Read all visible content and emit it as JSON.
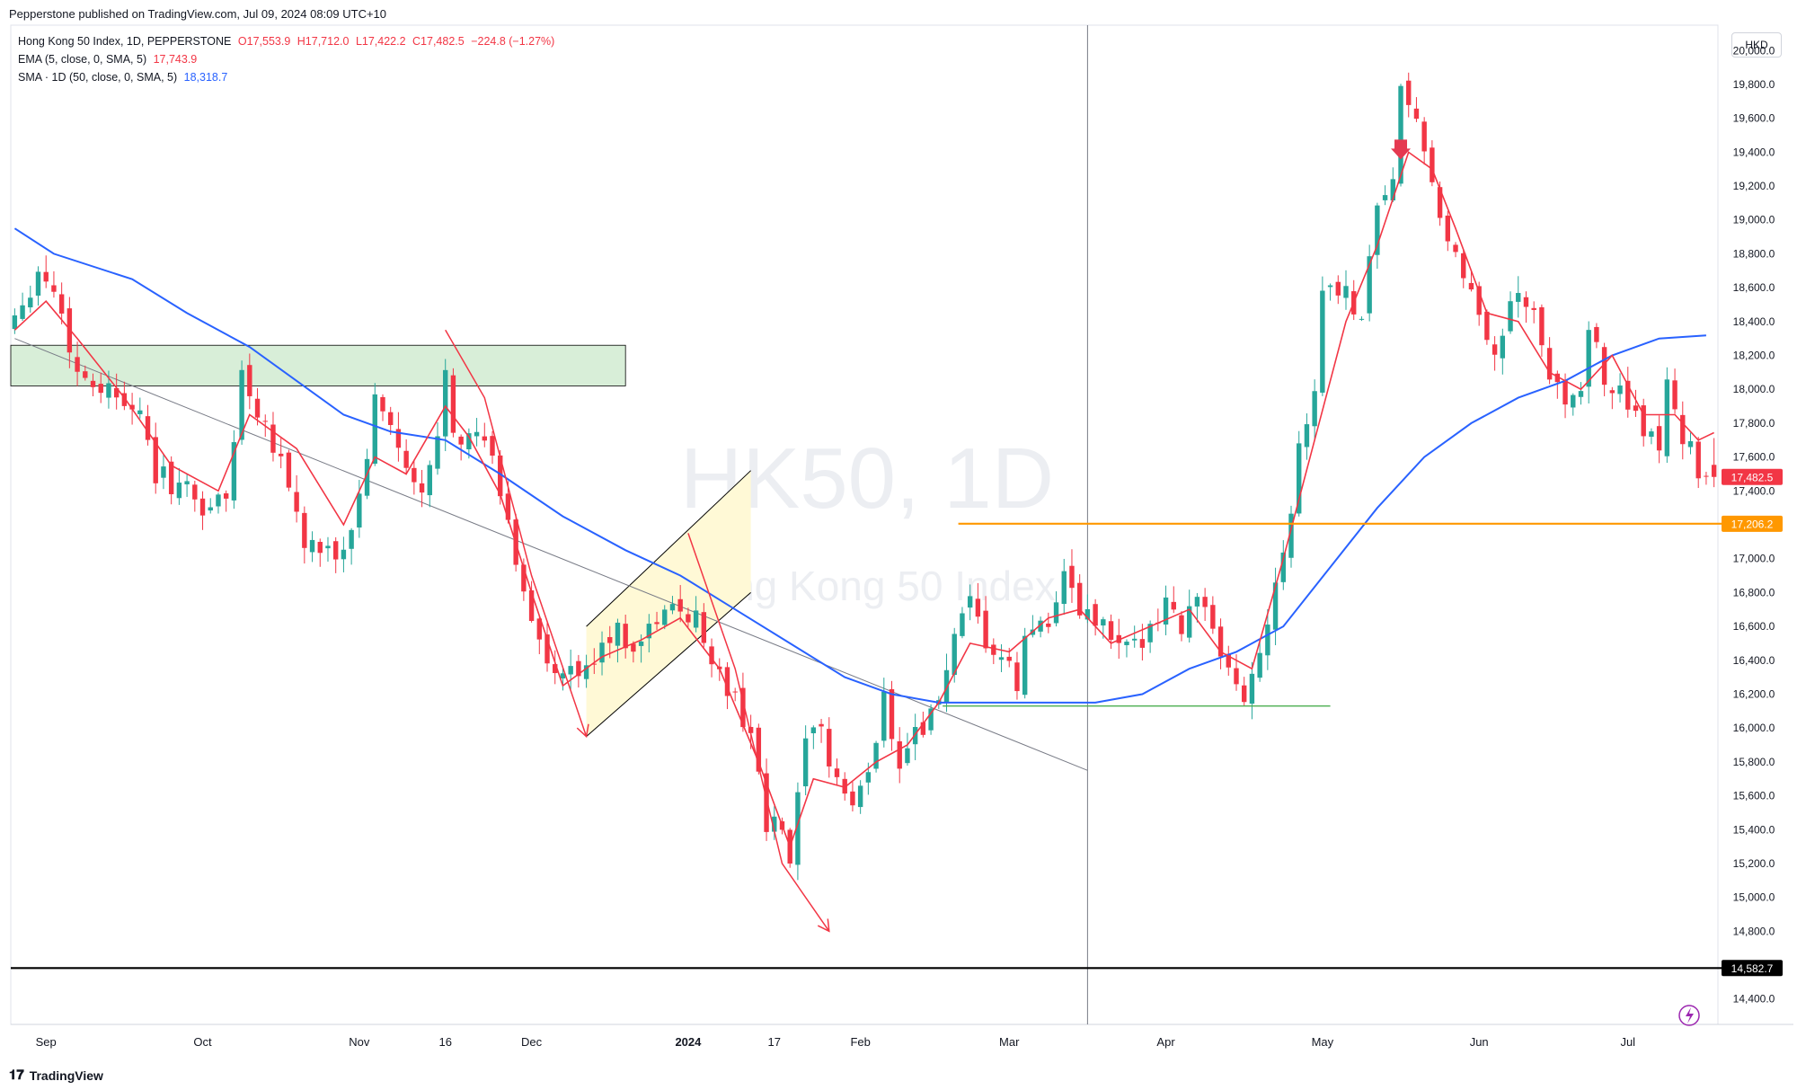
{
  "publisher": "Pepperstone published on TradingView.com, Jul 09, 2024 08:09 UTC+10",
  "legend": {
    "symbol_line": "Hong Kong 50 Index, 1D, PEPPERSTONE",
    "ohlc": {
      "o": "O17,553.9",
      "h": "H17,712.0",
      "l": "L17,422.2",
      "c": "C17,482.5",
      "chg": "−224.8 (−1.27%)"
    },
    "ema_label": "EMA (5, close, 0, SMA, 5)",
    "ema_value": "17,743.9",
    "sma_label": "SMA · 1D (50, close, 0, SMA, 5)",
    "sma_value": "18,318.7"
  },
  "currency": "HKD",
  "watermark": {
    "symbol": "HK50, 1D",
    "name": "Hong Kong 50 Index"
  },
  "footer": {
    "brand": "TradingView"
  },
  "colors": {
    "up": "#26a69a",
    "down": "#f23645",
    "ema": "#f23645",
    "sma": "#2962ff",
    "resistance": "#ff9800",
    "support_line": "#4caf50",
    "zone_fill": "#d8eed8",
    "channel_fill": "#fff9d6",
    "floor_line": "#000000"
  },
  "chart_data": {
    "type": "candlestick",
    "y_axis": {
      "min": 14250,
      "max": 20150,
      "ticks": [
        14400,
        14600,
        14800,
        15000,
        15200,
        15400,
        15600,
        15800,
        16000,
        16200,
        16400,
        16600,
        16800,
        17000,
        17200,
        17400,
        17600,
        17800,
        18000,
        18200,
        18400,
        18600,
        18800,
        19000,
        19200,
        19400,
        19600,
        19800,
        20000
      ],
      "tick_labels": [
        "14,400.0",
        "14,600.0",
        "14,800.0",
        "15,000.0",
        "15,200.0",
        "15,400.0",
        "15,600.0",
        "15,800.0",
        "16,000.0",
        "16,200.0",
        "16,400.0",
        "16,600.0",
        "16,800.0",
        "17,000.0",
        "17,200.0",
        "17,400.0",
        "17,600.0",
        "17,800.0",
        "18,000.0",
        "18,200.0",
        "18,400.0",
        "18,600.0",
        "18,800.0",
        "19,000.0",
        "19,200.0",
        "19,400.0",
        "19,600.0",
        "19,800.0",
        "20,000.0"
      ]
    },
    "x_axis": {
      "bar_count": 218,
      "labels": [
        {
          "text": "Sep",
          "bar": 4,
          "bold": false
        },
        {
          "text": "Oct",
          "bar": 24,
          "bold": false
        },
        {
          "text": "Nov",
          "bar": 44,
          "bold": false
        },
        {
          "text": "16",
          "bar": 55,
          "bold": false
        },
        {
          "text": "Dec",
          "bar": 66,
          "bold": false
        },
        {
          "text": "2024",
          "bar": 86,
          "bold": true
        },
        {
          "text": "17",
          "bar": 97,
          "bold": false
        },
        {
          "text": "Feb",
          "bar": 108,
          "bold": false
        },
        {
          "text": "Mar",
          "bar": 127,
          "bold": false
        },
        {
          "text": "Apr",
          "bar": 147,
          "bold": false
        },
        {
          "text": "May",
          "bar": 167,
          "bold": false
        },
        {
          "text": "Jun",
          "bar": 187,
          "bold": false
        },
        {
          "text": "Jul",
          "bar": 206,
          "bold": false
        }
      ]
    },
    "price_labels": [
      {
        "value": 17482.5,
        "text": "17,482.5",
        "color": "#f23645"
      },
      {
        "value": 17206.2,
        "text": "17,206.2",
        "color": "#ff9800"
      },
      {
        "value": 14582.7,
        "text": "14,582.7",
        "color": "#000000"
      }
    ],
    "close_path": [
      [
        0,
        18450
      ],
      [
        3,
        18700
      ],
      [
        5,
        18600
      ],
      [
        8,
        18100
      ],
      [
        12,
        18000
      ],
      [
        15,
        17950
      ],
      [
        18,
        17500
      ],
      [
        22,
        17400
      ],
      [
        24,
        17300
      ],
      [
        27,
        17350
      ],
      [
        29,
        18100
      ],
      [
        31,
        17900
      ],
      [
        34,
        17600
      ],
      [
        37,
        17100
      ],
      [
        40,
        17000
      ],
      [
        42,
        17050
      ],
      [
        44,
        17350
      ],
      [
        46,
        17900
      ],
      [
        48,
        17800
      ],
      [
        50,
        17500
      ],
      [
        52,
        17350
      ],
      [
        54,
        17700
      ],
      [
        55,
        18150
      ],
      [
        56,
        17800
      ],
      [
        58,
        17700
      ],
      [
        60,
        17700
      ],
      [
        62,
        17400
      ],
      [
        64,
        17000
      ],
      [
        67,
        16500
      ],
      [
        69,
        16250
      ],
      [
        71,
        16350
      ],
      [
        73,
        16300
      ],
      [
        75,
        16550
      ],
      [
        77,
        16550
      ],
      [
        80,
        16500
      ],
      [
        82,
        16650
      ],
      [
        85,
        16700
      ],
      [
        86,
        16700
      ],
      [
        88,
        16550
      ],
      [
        90,
        16300
      ],
      [
        92,
        16150
      ],
      [
        94,
        16000
      ],
      [
        96,
        15400
      ],
      [
        98,
        15400
      ],
      [
        99,
        15200
      ],
      [
        100,
        15550
      ],
      [
        101,
        15900
      ],
      [
        103,
        15950
      ],
      [
        105,
        15700
      ],
      [
        107,
        15550
      ],
      [
        108,
        15600
      ],
      [
        110,
        15950
      ],
      [
        111,
        16200
      ],
      [
        113,
        15800
      ],
      [
        115,
        16000
      ],
      [
        117,
        16050
      ],
      [
        118,
        16200
      ],
      [
        120,
        16500
      ],
      [
        122,
        16700
      ],
      [
        124,
        16500
      ],
      [
        126,
        16400
      ],
      [
        128,
        16250
      ],
      [
        129,
        16500
      ],
      [
        131,
        16650
      ],
      [
        133,
        16700
      ],
      [
        134,
        16950
      ],
      [
        135,
        16750
      ],
      [
        137,
        16650
      ],
      [
        139,
        16600
      ],
      [
        141,
        16450
      ],
      [
        143,
        16450
      ],
      [
        145,
        16650
      ],
      [
        147,
        16750
      ],
      [
        149,
        16600
      ],
      [
        150,
        16750
      ],
      [
        152,
        16750
      ],
      [
        154,
        16350
      ],
      [
        155,
        16300
      ],
      [
        157,
        16200
      ],
      [
        158,
        16300
      ],
      [
        159,
        16450
      ],
      [
        161,
        16900
      ],
      [
        163,
        17300
      ],
      [
        164,
        17700
      ],
      [
        166,
        18000
      ],
      [
        167,
        18550
      ],
      [
        168,
        18650
      ],
      [
        170,
        18550
      ],
      [
        172,
        18450
      ],
      [
        174,
        19100
      ],
      [
        176,
        19250
      ],
      [
        177,
        19750
      ],
      [
        178,
        19600
      ],
      [
        179,
        19650
      ],
      [
        180,
        19350
      ],
      [
        181,
        19150
      ],
      [
        183,
        18900
      ],
      [
        185,
        18600
      ],
      [
        187,
        18450
      ],
      [
        189,
        18250
      ],
      [
        191,
        18450
      ],
      [
        193,
        18550
      ],
      [
        194,
        18400
      ],
      [
        196,
        18050
      ],
      [
        198,
        17950
      ],
      [
        200,
        18050
      ],
      [
        201,
        18400
      ],
      [
        203,
        18000
      ],
      [
        205,
        18050
      ],
      [
        206,
        17950
      ],
      [
        208,
        17650
      ],
      [
        210,
        17700
      ],
      [
        211,
        18050
      ],
      [
        212,
        17950
      ],
      [
        213,
        17700
      ],
      [
        214,
        17650
      ],
      [
        215,
        17550
      ],
      [
        217,
        17482.5
      ]
    ],
    "ema_path": [
      [
        0,
        18350
      ],
      [
        4,
        18520
      ],
      [
        8,
        18300
      ],
      [
        14,
        17950
      ],
      [
        20,
        17550
      ],
      [
        26,
        17400
      ],
      [
        30,
        17850
      ],
      [
        36,
        17650
      ],
      [
        42,
        17200
      ],
      [
        46,
        17600
      ],
      [
        50,
        17500
      ],
      [
        55,
        17900
      ],
      [
        58,
        17720
      ],
      [
        62,
        17380
      ],
      [
        66,
        16800
      ],
      [
        70,
        16250
      ],
      [
        75,
        16420
      ],
      [
        80,
        16520
      ],
      [
        85,
        16650
      ],
      [
        90,
        16350
      ],
      [
        95,
        15800
      ],
      [
        99,
        15300
      ],
      [
        102,
        15700
      ],
      [
        106,
        15650
      ],
      [
        110,
        15800
      ],
      [
        114,
        15900
      ],
      [
        118,
        16150
      ],
      [
        122,
        16500
      ],
      [
        127,
        16450
      ],
      [
        132,
        16650
      ],
      [
        136,
        16700
      ],
      [
        140,
        16500
      ],
      [
        145,
        16600
      ],
      [
        150,
        16700
      ],
      [
        154,
        16450
      ],
      [
        158,
        16350
      ],
      [
        162,
        17000
      ],
      [
        166,
        17700
      ],
      [
        170,
        18400
      ],
      [
        174,
        18850
      ],
      [
        178,
        19400
      ],
      [
        181,
        19300
      ],
      [
        184,
        18950
      ],
      [
        188,
        18450
      ],
      [
        192,
        18400
      ],
      [
        196,
        18100
      ],
      [
        200,
        18000
      ],
      [
        204,
        18200
      ],
      [
        208,
        17850
      ],
      [
        212,
        17850
      ],
      [
        215,
        17700
      ],
      [
        217,
        17743.9
      ]
    ],
    "sma_path": [
      [
        0,
        18950
      ],
      [
        5,
        18800
      ],
      [
        15,
        18650
      ],
      [
        22,
        18450
      ],
      [
        30,
        18250
      ],
      [
        36,
        18050
      ],
      [
        42,
        17850
      ],
      [
        48,
        17750
      ],
      [
        55,
        17700
      ],
      [
        62,
        17500
      ],
      [
        70,
        17250
      ],
      [
        78,
        17050
      ],
      [
        85,
        16900
      ],
      [
        92,
        16700
      ],
      [
        99,
        16500
      ],
      [
        106,
        16300
      ],
      [
        112,
        16200
      ],
      [
        118,
        16150
      ],
      [
        125,
        16150
      ],
      [
        132,
        16150
      ],
      [
        138,
        16150
      ],
      [
        144,
        16200
      ],
      [
        150,
        16350
      ],
      [
        156,
        16450
      ],
      [
        162,
        16600
      ],
      [
        168,
        16950
      ],
      [
        174,
        17300
      ],
      [
        180,
        17600
      ],
      [
        186,
        17800
      ],
      [
        192,
        17950
      ],
      [
        198,
        18050
      ],
      [
        204,
        18200
      ],
      [
        210,
        18300
      ],
      [
        216,
        18318.7
      ]
    ],
    "annotations": {
      "resistance_zone": {
        "bar_from": 0,
        "bar_to": 78,
        "price_from": 18020,
        "price_to": 18260
      },
      "horizontal_lines": [
        {
          "price": 17206.2,
          "bar_from": 121,
          "bar_to": 218,
          "color": "#ff9800"
        },
        {
          "price": 16130,
          "bar_from": 119,
          "bar_to": 168,
          "color": "#4caf50"
        },
        {
          "price": 14582.7,
          "bar_from": 0,
          "bar_to": 218,
          "color": "#000000"
        }
      ],
      "trendline": {
        "points": [
          [
            0,
            18300
          ],
          [
            137,
            15750
          ]
        ]
      },
      "vertical_line_bar": 137,
      "channel": {
        "lower": [
          [
            73,
            15950
          ],
          [
            94,
            16800
          ]
        ],
        "upper": [
          [
            73,
            16600
          ],
          [
            94,
            17520
          ]
        ]
      },
      "arrows": [
        {
          "points": [
            [
              55,
              18350
            ],
            [
              60,
              17950
            ],
            [
              66,
              16900
            ],
            [
              73,
              15950
            ]
          ]
        },
        {
          "points": [
            [
              86,
              17150
            ],
            [
              92,
              16350
            ],
            [
              98,
              15200
            ],
            [
              104,
              14800
            ]
          ]
        }
      ],
      "down_marker": {
        "bar": 177,
        "price": 19400
      }
    }
  }
}
